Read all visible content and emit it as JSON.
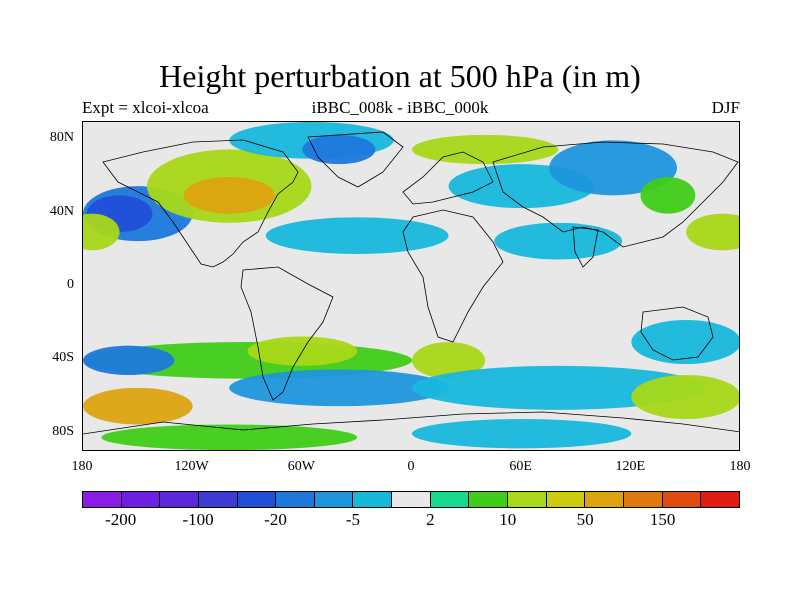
{
  "title": "Height perturbation at 500 hPa (in m)",
  "subtitle_left": "Expt = xlcoi-xlcoa",
  "subtitle_center": "iBBC_008k - iBBC_000k",
  "subtitle_right": "DJF",
  "y_ticks": [
    {
      "label": "80N",
      "lat": 80
    },
    {
      "label": "40N",
      "lat": 40
    },
    {
      "label": "0",
      "lat": 0
    },
    {
      "label": "40S",
      "lat": -40
    },
    {
      "label": "80S",
      "lat": -80
    }
  ],
  "x_ticks": [
    {
      "label": "180",
      "lon": -180
    },
    {
      "label": "120W",
      "lon": -120
    },
    {
      "label": "60W",
      "lon": -60
    },
    {
      "label": "0",
      "lon": 0
    },
    {
      "label": "60E",
      "lon": 60
    },
    {
      "label": "120E",
      "lon": 120
    },
    {
      "label": "180",
      "lon": 180
    }
  ],
  "map_extent": {
    "lon": [
      -180,
      180
    ],
    "lat": [
      -90,
      90
    ]
  },
  "colorbar": {
    "colors": [
      "#8a1ce6",
      "#6e20e0",
      "#5a28d8",
      "#3c3cd2",
      "#2050d8",
      "#1e78dc",
      "#1e96dc",
      "#18b8dc",
      "#e8e8e8",
      "#18d890",
      "#40cc18",
      "#a8d818",
      "#cccc10",
      "#dca410",
      "#e07810",
      "#e04c10",
      "#e01c10"
    ],
    "labels": [
      {
        "text": "-200",
        "boundary": 1
      },
      {
        "text": "-100",
        "boundary": 3
      },
      {
        "text": "-20",
        "boundary": 5
      },
      {
        "text": "-5",
        "boundary": 7
      },
      {
        "text": "2",
        "boundary": 9
      },
      {
        "text": "10",
        "boundary": 11
      },
      {
        "text": "50",
        "boundary": 13
      },
      {
        "text": "150",
        "boundary": 15
      }
    ]
  },
  "fields": [
    {
      "lon": -150,
      "lat": 40,
      "rx": 30,
      "ry": 15,
      "color": "#1e78dc"
    },
    {
      "lon": -160,
      "lat": 40,
      "rx": 18,
      "ry": 10,
      "color": "#2050d8"
    },
    {
      "lon": -175,
      "lat": 30,
      "rx": 15,
      "ry": 10,
      "color": "#a8d818"
    },
    {
      "lon": -100,
      "lat": 55,
      "rx": 45,
      "ry": 20,
      "color": "#a8d818"
    },
    {
      "lon": -100,
      "lat": 50,
      "rx": 25,
      "ry": 10,
      "color": "#dca410"
    },
    {
      "lon": -55,
      "lat": 80,
      "rx": 45,
      "ry": 10,
      "color": "#18b8dc"
    },
    {
      "lon": -40,
      "lat": 75,
      "rx": 20,
      "ry": 8,
      "color": "#1e78dc"
    },
    {
      "lon": 40,
      "lat": 75,
      "rx": 40,
      "ry": 8,
      "color": "#a8d818"
    },
    {
      "lon": 60,
      "lat": 55,
      "rx": 40,
      "ry": 12,
      "color": "#18b8dc"
    },
    {
      "lon": 110,
      "lat": 65,
      "rx": 35,
      "ry": 15,
      "color": "#1e96dc"
    },
    {
      "lon": 140,
      "lat": 50,
      "rx": 15,
      "ry": 10,
      "color": "#40cc18"
    },
    {
      "lon": 170,
      "lat": 30,
      "rx": 20,
      "ry": 10,
      "color": "#a8d818"
    },
    {
      "lon": 80,
      "lat": 25,
      "rx": 35,
      "ry": 10,
      "color": "#18b8dc"
    },
    {
      "lon": -30,
      "lat": 28,
      "rx": 50,
      "ry": 10,
      "color": "#18b8dc"
    },
    {
      "lon": -100,
      "lat": 0,
      "rx": 40,
      "ry": 5,
      "color": "#e8e8e8"
    },
    {
      "lon": -90,
      "lat": -40,
      "rx": 90,
      "ry": 10,
      "color": "#40cc18"
    },
    {
      "lon": -60,
      "lat": -35,
      "rx": 30,
      "ry": 8,
      "color": "#a8d818"
    },
    {
      "lon": -155,
      "lat": -40,
      "rx": 25,
      "ry": 8,
      "color": "#1e78dc"
    },
    {
      "lon": -40,
      "lat": -55,
      "rx": 60,
      "ry": 10,
      "color": "#1e96dc"
    },
    {
      "lon": -150,
      "lat": -65,
      "rx": 30,
      "ry": 10,
      "color": "#dca410"
    },
    {
      "lon": 20,
      "lat": -40,
      "rx": 20,
      "ry": 10,
      "color": "#a8d818"
    },
    {
      "lon": 80,
      "lat": -55,
      "rx": 80,
      "ry": 12,
      "color": "#18b8dc"
    },
    {
      "lon": 150,
      "lat": -60,
      "rx": 30,
      "ry": 12,
      "color": "#a8d818"
    },
    {
      "lon": 150,
      "lat": -30,
      "rx": 30,
      "ry": 12,
      "color": "#18b8dc"
    },
    {
      "lon": 60,
      "lat": -80,
      "rx": 60,
      "ry": 8,
      "color": "#18b8dc"
    },
    {
      "lon": -100,
      "lat": -82,
      "rx": 70,
      "ry": 7,
      "color": "#40cc18"
    }
  ]
}
